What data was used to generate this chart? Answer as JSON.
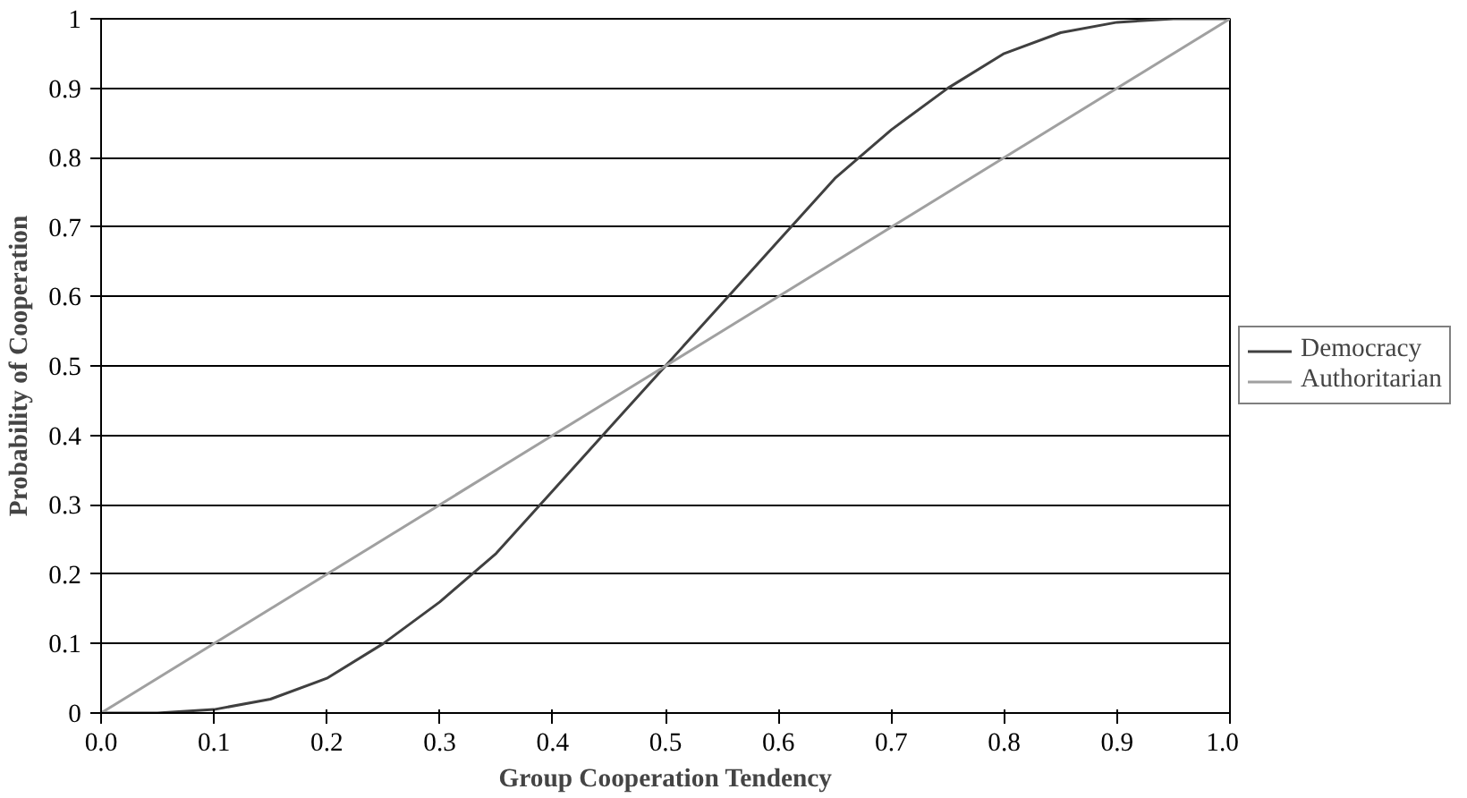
{
  "chart_data": {
    "type": "line",
    "xlabel": "Group Cooperation Tendency",
    "ylabel": "Probability of Cooperation",
    "x": [
      0,
      0.05,
      0.1,
      0.15,
      0.2,
      0.25,
      0.3,
      0.35,
      0.4,
      0.45,
      0.5,
      0.55,
      0.6,
      0.65,
      0.7,
      0.75,
      0.8,
      0.85,
      0.9,
      0.95,
      1
    ],
    "series": [
      {
        "name": "Democracy",
        "color": "#404040",
        "values": [
          0,
          0.0,
          0.005,
          0.02,
          0.05,
          0.1,
          0.16,
          0.23,
          0.32,
          0.41,
          0.5,
          0.59,
          0.68,
          0.77,
          0.84,
          0.9,
          0.95,
          0.98,
          0.995,
          1,
          1
        ]
      },
      {
        "name": "Authoritarian",
        "color": "#a0a0a0",
        "x": [
          0,
          1
        ],
        "values": [
          0,
          1
        ]
      }
    ],
    "xlim": [
      0,
      1
    ],
    "ylim": [
      0,
      1
    ],
    "xticks": [
      {
        "value": 0,
        "label": "0.0"
      },
      {
        "value": 0.1,
        "label": "0.1"
      },
      {
        "value": 0.2,
        "label": "0.2"
      },
      {
        "value": 0.3,
        "label": "0.3"
      },
      {
        "value": 0.4,
        "label": "0.4"
      },
      {
        "value": 0.5,
        "label": "0.5"
      },
      {
        "value": 0.6,
        "label": "0.6"
      },
      {
        "value": 0.7,
        "label": "0.7"
      },
      {
        "value": 0.8,
        "label": "0.8"
      },
      {
        "value": 0.9,
        "label": "0.9"
      },
      {
        "value": 1,
        "label": "1.0"
      }
    ],
    "yticks": [
      0,
      0.1,
      0.2,
      0.3,
      0.4,
      0.5,
      0.6,
      0.7,
      0.8,
      0.9,
      1
    ],
    "grid": "y",
    "legend": "right",
    "marker": "none",
    "line_style": "solid"
  }
}
